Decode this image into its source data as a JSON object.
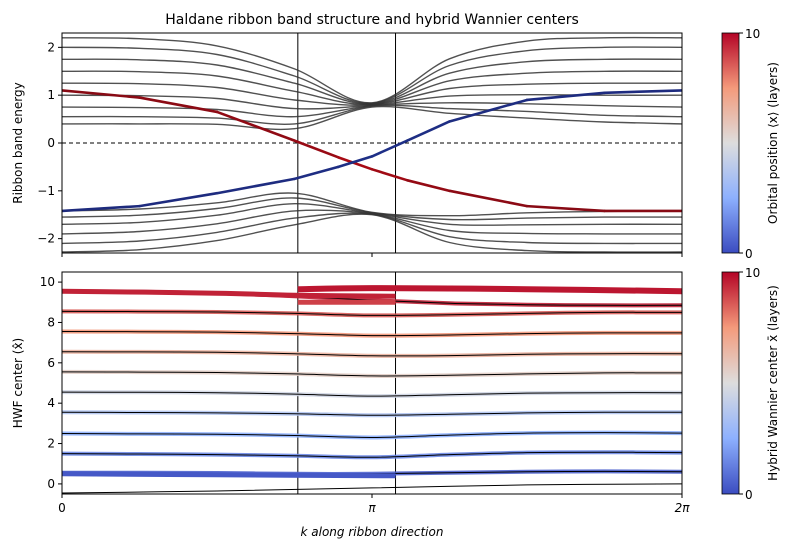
{
  "figure": {
    "title": "Haldane ribbon band structure and hybrid Wannier centers"
  },
  "chart_data": [
    {
      "type": "line",
      "name": "band-structure",
      "title": "Haldane ribbon band structure and hybrid Wannier centers",
      "xlabel": "",
      "ylabel": "Ribbon band energy",
      "xlim": [
        0,
        6.2832
      ],
      "ylim": [
        -2.3,
        2.3
      ],
      "yticks": [
        -2,
        -1,
        0,
        1,
        2
      ],
      "ytick_labels": [
        "−2",
        "−1",
        "0",
        "1",
        "2"
      ],
      "xticks": [
        0,
        3.1416,
        6.2832
      ],
      "xtick_labels": [
        "",
        "",
        ""
      ],
      "reference_lines": {
        "horizontal_dashed_y": 0,
        "vertical_x": [
          2.39,
          3.38
        ]
      },
      "bulk_conduction_bands": {
        "x": [
          0,
          0.785,
          1.571,
          2.356,
          3.142,
          3.927,
          4.712,
          5.498,
          6.283
        ],
        "series": [
          {
            "values": [
              0.4,
              0.4,
              0.39,
              0.3,
              0.75,
              0.62,
              0.52,
              0.44,
              0.4
            ]
          },
          {
            "values": [
              0.55,
              0.55,
              0.52,
              0.4,
              0.77,
              0.72,
              0.66,
              0.58,
              0.55
            ]
          },
          {
            "values": [
              0.75,
              0.74,
              0.7,
              0.55,
              0.78,
              0.84,
              0.82,
              0.78,
              0.75
            ]
          },
          {
            "values": [
              1.0,
              0.99,
              0.93,
              0.72,
              0.79,
              0.98,
              1.01,
              1.0,
              1.0
            ]
          },
          {
            "values": [
              1.25,
              1.24,
              1.16,
              0.9,
              0.8,
              1.14,
              1.23,
              1.25,
              1.25
            ]
          },
          {
            "values": [
              1.5,
              1.49,
              1.4,
              1.08,
              0.81,
              1.3,
              1.46,
              1.5,
              1.5
            ]
          },
          {
            "values": [
              1.75,
              1.74,
              1.63,
              1.25,
              0.82,
              1.46,
              1.7,
              1.75,
              1.75
            ]
          },
          {
            "values": [
              2.0,
              1.98,
              1.85,
              1.4,
              0.83,
              1.62,
              1.93,
              2.0,
              2.0
            ]
          },
          {
            "values": [
              2.2,
              2.18,
              2.03,
              1.55,
              0.84,
              1.76,
              2.13,
              2.2,
              2.2
            ]
          }
        ]
      },
      "bulk_valence_bands": {
        "x": [
          0,
          0.785,
          1.571,
          2.356,
          3.142,
          3.927,
          4.712,
          5.498,
          6.283
        ],
        "series": [
          {
            "values": [
              -1.42,
              -1.38,
              -1.25,
              -1.05,
              -1.45,
              -1.52,
              -1.46,
              -1.43,
              -1.42
            ]
          },
          {
            "values": [
              -1.55,
              -1.51,
              -1.37,
              -1.15,
              -1.46,
              -1.6,
              -1.57,
              -1.55,
              -1.55
            ]
          },
          {
            "values": [
              -1.7,
              -1.66,
              -1.51,
              -1.27,
              -1.47,
              -1.7,
              -1.71,
              -1.7,
              -1.7
            ]
          },
          {
            "values": [
              -1.9,
              -1.85,
              -1.69,
              -1.42,
              -1.48,
              -1.83,
              -1.89,
              -1.9,
              -1.9
            ]
          },
          {
            "values": [
              -2.1,
              -2.05,
              -1.87,
              -1.57,
              -1.49,
              -1.96,
              -2.08,
              -2.1,
              -2.1
            ]
          },
          {
            "values": [
              -2.28,
              -2.23,
              -2.04,
              -1.71,
              -1.5,
              -2.08,
              -2.25,
              -2.28,
              -2.28
            ]
          }
        ]
      },
      "edge_state_right": {
        "x": [
          0,
          0.785,
          1.571,
          2.356,
          2.8,
          3.142,
          3.5,
          3.927,
          4.712,
          5.498,
          6.283
        ],
        "values": [
          1.1,
          0.95,
          0.65,
          0.05,
          -0.3,
          -0.55,
          -0.78,
          -1.0,
          -1.32,
          -1.42,
          -1.42
        ],
        "position": [
          9.6,
          9.5,
          9.4,
          9.2,
          8.8,
          9.0,
          9.3,
          9.5,
          9.6,
          9.6,
          9.6
        ]
      },
      "edge_state_left": {
        "x": [
          0,
          0.785,
          1.571,
          2.356,
          2.8,
          3.142,
          3.5,
          3.927,
          4.712,
          5.498,
          6.283
        ],
        "values": [
          -1.42,
          -1.32,
          -1.05,
          -0.75,
          -0.5,
          -0.28,
          0.05,
          0.45,
          0.9,
          1.05,
          1.1
        ],
        "position": [
          0.4,
          0.5,
          0.6,
          0.8,
          1.0,
          1.1,
          0.9,
          0.7,
          0.6,
          0.5,
          0.4
        ]
      },
      "colorbar": {
        "label": "Orbital position ⟨x⟩ (layers)",
        "range": [
          0,
          10
        ],
        "tick_labels": [
          "0",
          "10"
        ],
        "colormap": "coolwarm"
      }
    },
    {
      "type": "line",
      "name": "hwf-centers",
      "xlabel": "k along ribbon direction",
      "ylabel": "HWF center (x̂)",
      "xlim": [
        0,
        6.2832
      ],
      "ylim": [
        -0.5,
        10.5
      ],
      "yticks": [
        0,
        2,
        4,
        6,
        8,
        10
      ],
      "ytick_labels": [
        "0",
        "2",
        "4",
        "6",
        "8",
        "10"
      ],
      "xticks": [
        0,
        3.1416,
        6.2832
      ],
      "xtick_labels": [
        "0",
        "π",
        "2π"
      ],
      "reference_lines": {
        "vertical_x": [
          2.39,
          3.38
        ]
      },
      "x": [
        0,
        0.785,
        1.571,
        2.356,
        3.142,
        3.927,
        4.712,
        5.498,
        6.283
      ],
      "series": [
        {
          "values": [
            0.55,
            0.55,
            0.54,
            0.5,
            0.5,
            0.55,
            0.6,
            0.62,
            0.6
          ]
        },
        {
          "values": [
            1.5,
            1.48,
            1.45,
            1.4,
            1.32,
            1.45,
            1.55,
            1.57,
            1.55
          ]
        },
        {
          "values": [
            2.5,
            2.48,
            2.46,
            2.4,
            2.3,
            2.42,
            2.52,
            2.54,
            2.52
          ]
        },
        {
          "values": [
            3.55,
            3.54,
            3.52,
            3.48,
            3.4,
            3.45,
            3.52,
            3.55,
            3.55
          ]
        },
        {
          "values": [
            4.55,
            4.54,
            4.52,
            4.45,
            4.35,
            4.42,
            4.5,
            4.52,
            4.52
          ]
        },
        {
          "values": [
            5.55,
            5.54,
            5.52,
            5.45,
            5.35,
            5.38,
            5.45,
            5.5,
            5.5
          ]
        },
        {
          "values": [
            6.55,
            6.54,
            6.52,
            6.45,
            6.35,
            6.36,
            6.42,
            6.45,
            6.45
          ]
        },
        {
          "values": [
            7.55,
            7.54,
            7.52,
            7.45,
            7.35,
            7.38,
            7.45,
            7.48,
            7.48
          ]
        },
        {
          "values": [
            8.55,
            8.54,
            8.52,
            8.45,
            8.35,
            8.38,
            8.45,
            8.5,
            8.5
          ]
        },
        {
          "values": [
            9.55,
            9.52,
            9.45,
            9.3,
            9.1,
            8.95,
            8.88,
            8.85,
            8.85
          ]
        }
      ],
      "edge_segments": [
        {
          "x": [
            0,
            1.571,
            2.356,
            3.38
          ],
          "values": [
            9.55,
            9.45,
            9.35,
            9.3
          ],
          "position": 9.5
        },
        {
          "x": [
            2.39,
            3.38
          ],
          "values": [
            9.0,
            9.0
          ],
          "position": 9.0
        },
        {
          "x": [
            2.39,
            3.142,
            4.712,
            6.283
          ],
          "values": [
            9.65,
            9.7,
            9.65,
            9.55
          ],
          "position": 9.7
        },
        {
          "x": [
            0,
            1.571,
            3.38
          ],
          "values": [
            0.5,
            0.45,
            0.4
          ],
          "position": 0.3
        }
      ],
      "lower_trace": {
        "x": [
          0,
          1.571,
          3.142,
          4.712,
          6.283
        ],
        "values": [
          -0.45,
          -0.35,
          -0.2,
          -0.05,
          0.0
        ]
      },
      "colorbar": {
        "label": "Hybrid Wannier center x̄ (layers)",
        "range": [
          0,
          10
        ],
        "tick_labels": [
          "0",
          "10"
        ],
        "colormap": "coolwarm"
      }
    }
  ]
}
